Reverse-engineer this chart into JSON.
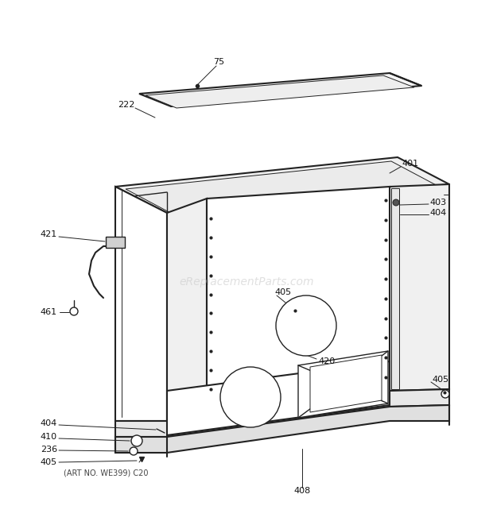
{
  "bg_color": "#ffffff",
  "line_color": "#222222",
  "watermark_color": "#cccccc",
  "watermark_text": "eReplacementParts.com",
  "art_no_text": "(ART NO. WE399) C20",
  "figsize": [
    6.2,
    6.61
  ],
  "dpi": 100
}
